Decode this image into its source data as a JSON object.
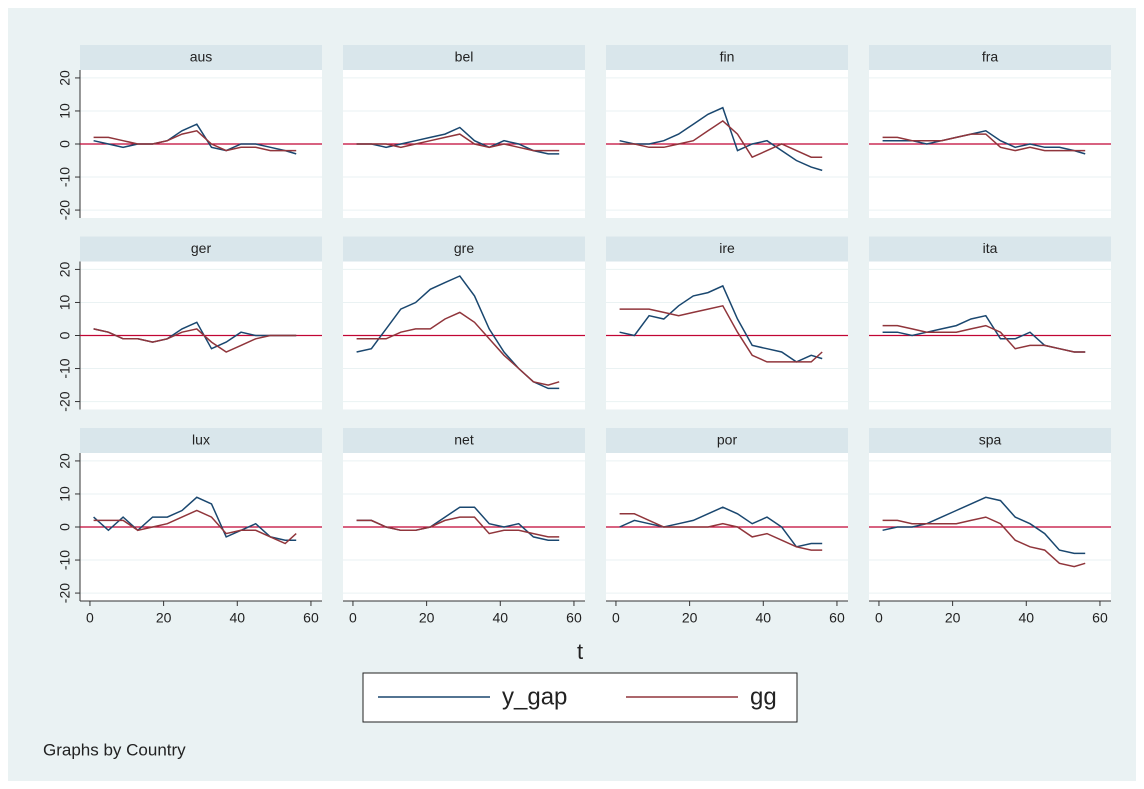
{
  "chart_data": {
    "type": "line",
    "x": [
      1,
      5,
      9,
      13,
      17,
      21,
      25,
      29,
      33,
      37,
      41,
      45,
      49,
      53,
      56
    ],
    "xlim": [
      -2.7,
      63
    ],
    "xticks": [
      0,
      20,
      40,
      60
    ],
    "ylim": [
      -22.4,
      22.4
    ],
    "yticks": [
      -20,
      -10,
      0,
      10,
      20
    ],
    "grid": true,
    "yline": 0,
    "yline_color": "#c10534",
    "xlabel": "t",
    "note": "Graphs by Country",
    "series": [
      {
        "name": "y_gap",
        "color": "#1a476f"
      },
      {
        "name": "gg",
        "color": "#90353b"
      }
    ],
    "panels": [
      {
        "title": "aus",
        "series": [
          {
            "values": [
              1,
              0,
              -1,
              0,
              0,
              1,
              4,
              6,
              -1,
              -2,
              0,
              0,
              -1,
              -2,
              -3
            ]
          },
          {
            "values": [
              2,
              2,
              1,
              0,
              0,
              1,
              3,
              4,
              0,
              -2,
              -1,
              -1,
              -2,
              -2,
              -2
            ]
          }
        ]
      },
      {
        "title": "bel",
        "series": [
          {
            "values": [
              0,
              0,
              -1,
              0,
              1,
              2,
              3,
              5,
              1,
              -1,
              1,
              0,
              -2,
              -3,
              -3
            ]
          },
          {
            "values": [
              0,
              0,
              0,
              -1,
              0,
              1,
              2,
              3,
              0,
              -1,
              0,
              -1,
              -2,
              -2,
              -2
            ]
          }
        ]
      },
      {
        "title": "fin",
        "series": [
          {
            "values": [
              1,
              0,
              0,
              1,
              3,
              6,
              9,
              11,
              -2,
              0,
              1,
              -2,
              -5,
              -7,
              -8
            ]
          },
          {
            "values": [
              0,
              0,
              -1,
              -1,
              0,
              1,
              4,
              7,
              3,
              -4,
              -2,
              0,
              -2,
              -4,
              -4
            ]
          }
        ]
      },
      {
        "title": "fra",
        "series": [
          {
            "values": [
              1,
              1,
              1,
              0,
              1,
              2,
              3,
              4,
              1,
              -1,
              0,
              -1,
              -1,
              -2,
              -3
            ]
          },
          {
            "values": [
              2,
              2,
              1,
              1,
              1,
              2,
              3,
              3,
              -1,
              -2,
              -1,
              -2,
              -2,
              -2,
              -2
            ]
          }
        ]
      },
      {
        "title": "ger",
        "series": [
          {
            "values": [
              2,
              1,
              -1,
              -1,
              -2,
              -1,
              2,
              4,
              -4,
              -2,
              1,
              0,
              0,
              0,
              0
            ]
          },
          {
            "values": [
              2,
              1,
              -1,
              -1,
              -2,
              -1,
              1,
              2,
              -2,
              -5,
              -3,
              -1,
              0,
              0,
              0
            ]
          }
        ]
      },
      {
        "title": "gre",
        "series": [
          {
            "values": [
              -5,
              -4,
              2,
              8,
              10,
              14,
              16,
              18,
              12,
              2,
              -5,
              -10,
              -14,
              -16,
              -16
            ]
          },
          {
            "values": [
              -1,
              -1,
              -1,
              1,
              2,
              2,
              5,
              7,
              4,
              -1,
              -6,
              -10,
              -14,
              -15,
              -14
            ]
          }
        ]
      },
      {
        "title": "ire",
        "series": [
          {
            "values": [
              1,
              0,
              6,
              5,
              9,
              12,
              13,
              15,
              5,
              -3,
              -4,
              -5,
              -8,
              -6,
              -7
            ]
          },
          {
            "values": [
              8,
              8,
              8,
              7,
              6,
              7,
              8,
              9,
              1,
              -6,
              -8,
              -8,
              -8,
              -8,
              -5
            ]
          }
        ]
      },
      {
        "title": "ita",
        "series": [
          {
            "values": [
              1,
              1,
              0,
              1,
              2,
              3,
              5,
              6,
              -1,
              -1,
              1,
              -3,
              -4,
              -5,
              -5
            ]
          },
          {
            "values": [
              3,
              3,
              2,
              1,
              1,
              1,
              2,
              3,
              1,
              -4,
              -3,
              -3,
              -4,
              -5,
              -5
            ]
          }
        ]
      },
      {
        "title": "lux",
        "series": [
          {
            "values": [
              3,
              -1,
              3,
              -1,
              3,
              3,
              5,
              9,
              7,
              -3,
              -1,
              1,
              -3,
              -4,
              -4
            ]
          },
          {
            "values": [
              2,
              2,
              2,
              -1,
              0,
              1,
              3,
              5,
              3,
              -2,
              -1,
              -1,
              -3,
              -5,
              -2
            ]
          }
        ]
      },
      {
        "title": "net",
        "series": [
          {
            "values": [
              2,
              2,
              0,
              -1,
              -1,
              0,
              3,
              6,
              6,
              1,
              0,
              1,
              -3,
              -4,
              -4
            ]
          },
          {
            "values": [
              2,
              2,
              0,
              -1,
              -1,
              0,
              2,
              3,
              3,
              -2,
              -1,
              -1,
              -2,
              -3,
              -3
            ]
          }
        ]
      },
      {
        "title": "por",
        "series": [
          {
            "values": [
              0,
              2,
              1,
              0,
              1,
              2,
              4,
              6,
              4,
              1,
              3,
              0,
              -6,
              -5,
              -5
            ]
          },
          {
            "values": [
              4,
              4,
              2,
              0,
              0,
              0,
              0,
              1,
              0,
              -3,
              -2,
              -4,
              -6,
              -7,
              -7
            ]
          }
        ]
      },
      {
        "title": "spa",
        "series": [
          {
            "values": [
              -1,
              0,
              0,
              1,
              3,
              5,
              7,
              9,
              8,
              3,
              1,
              -2,
              -7,
              -8,
              -8
            ]
          },
          {
            "values": [
              2,
              2,
              1,
              1,
              1,
              1,
              2,
              3,
              1,
              -4,
              -6,
              -7,
              -11,
              -12,
              -11
            ]
          }
        ]
      }
    ]
  }
}
